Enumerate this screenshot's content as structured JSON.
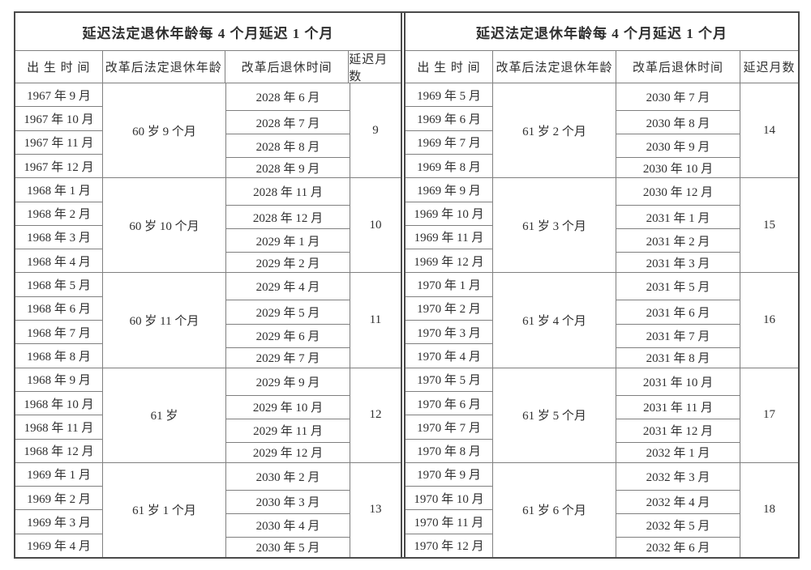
{
  "tables": [
    {
      "title": "延迟法定退休年龄每 4 个月延迟 1 个月",
      "columns": [
        "出 生 时 间",
        "改革后法定退休年龄",
        "改革后退休时间",
        "延迟月数"
      ],
      "groups": [
        {
          "births": [
            "1967 年 9 月",
            "1967 年 10 月",
            "1967 年 11 月",
            "1967 年 12 月"
          ],
          "age": "60 岁 9 个月",
          "retires": [
            "2028 年 6 月",
            "2028 年 7 月",
            "2028 年 8 月",
            "2028 年 9 月"
          ],
          "delay": "9"
        },
        {
          "births": [
            "1968 年 1 月",
            "1968 年 2 月",
            "1968 年 3 月",
            "1968 年 4 月"
          ],
          "age": "60 岁 10 个月",
          "retires": [
            "2028 年 11 月",
            "2028 年 12 月",
            "2029 年 1 月",
            "2029 年 2 月"
          ],
          "delay": "10"
        },
        {
          "births": [
            "1968 年 5 月",
            "1968 年 6 月",
            "1968 年 7 月",
            "1968 年 8 月"
          ],
          "age": "60 岁 11 个月",
          "retires": [
            "2029 年 4 月",
            "2029 年 5 月",
            "2029 年 6 月",
            "2029 年 7 月"
          ],
          "delay": "11"
        },
        {
          "births": [
            "1968 年 9 月",
            "1968 年 10 月",
            "1968 年 11 月",
            "1968 年 12 月"
          ],
          "age": "61 岁",
          "retires": [
            "2029 年 9 月",
            "2029 年 10 月",
            "2029 年 11 月",
            "2029 年 12 月"
          ],
          "delay": "12"
        },
        {
          "births": [
            "1969 年 1 月",
            "1969 年 2 月",
            "1969 年 3 月",
            "1969 年 4 月"
          ],
          "age": "61 岁 1 个月",
          "retires": [
            "2030 年 2 月",
            "2030 年 3 月",
            "2030 年 4 月",
            "2030 年 5 月"
          ],
          "delay": "13"
        }
      ]
    },
    {
      "title": "延迟法定退休年龄每 4 个月延迟 1 个月",
      "columns": [
        "出 生 时 间",
        "改革后法定退休年龄",
        "改革后退休时间",
        "延迟月数"
      ],
      "groups": [
        {
          "births": [
            "1969 年 5 月",
            "1969 年 6 月",
            "1969 年 7 月",
            "1969 年 8 月"
          ],
          "age": "61 岁 2 个月",
          "retires": [
            "2030 年 7 月",
            "2030 年 8 月",
            "2030 年 9 月",
            "2030 年 10 月"
          ],
          "delay": "14"
        },
        {
          "births": [
            "1969 年 9 月",
            "1969 年 10 月",
            "1969 年 11 月",
            "1969 年 12 月"
          ],
          "age": "61 岁 3 个月",
          "retires": [
            "2030 年 12 月",
            "2031 年 1 月",
            "2031 年 2 月",
            "2031 年 3 月"
          ],
          "delay": "15"
        },
        {
          "births": [
            "1970 年 1 月",
            "1970 年 2 月",
            "1970 年 3 月",
            "1970 年 4 月"
          ],
          "age": "61 岁 4 个月",
          "retires": [
            "2031 年 5 月",
            "2031 年 6 月",
            "2031 年 7 月",
            "2031 年 8 月"
          ],
          "delay": "16"
        },
        {
          "births": [
            "1970 年 5 月",
            "1970 年 6 月",
            "1970 年 7 月",
            "1970 年 8 月"
          ],
          "age": "61 岁 5 个月",
          "retires": [
            "2031 年 10 月",
            "2031 年 11 月",
            "2031 年 12 月",
            "2032 年 1 月"
          ],
          "delay": "17"
        },
        {
          "births": [
            "1970 年 9 月",
            "1970 年 10 月",
            "1970 年 11 月",
            "1970 年 12 月"
          ],
          "age": "61 岁 6 个月",
          "retires": [
            "2032 年 3 月",
            "2032 年 4 月",
            "2032 年 5 月",
            "2032 年 6 月"
          ],
          "delay": "18"
        }
      ]
    }
  ]
}
